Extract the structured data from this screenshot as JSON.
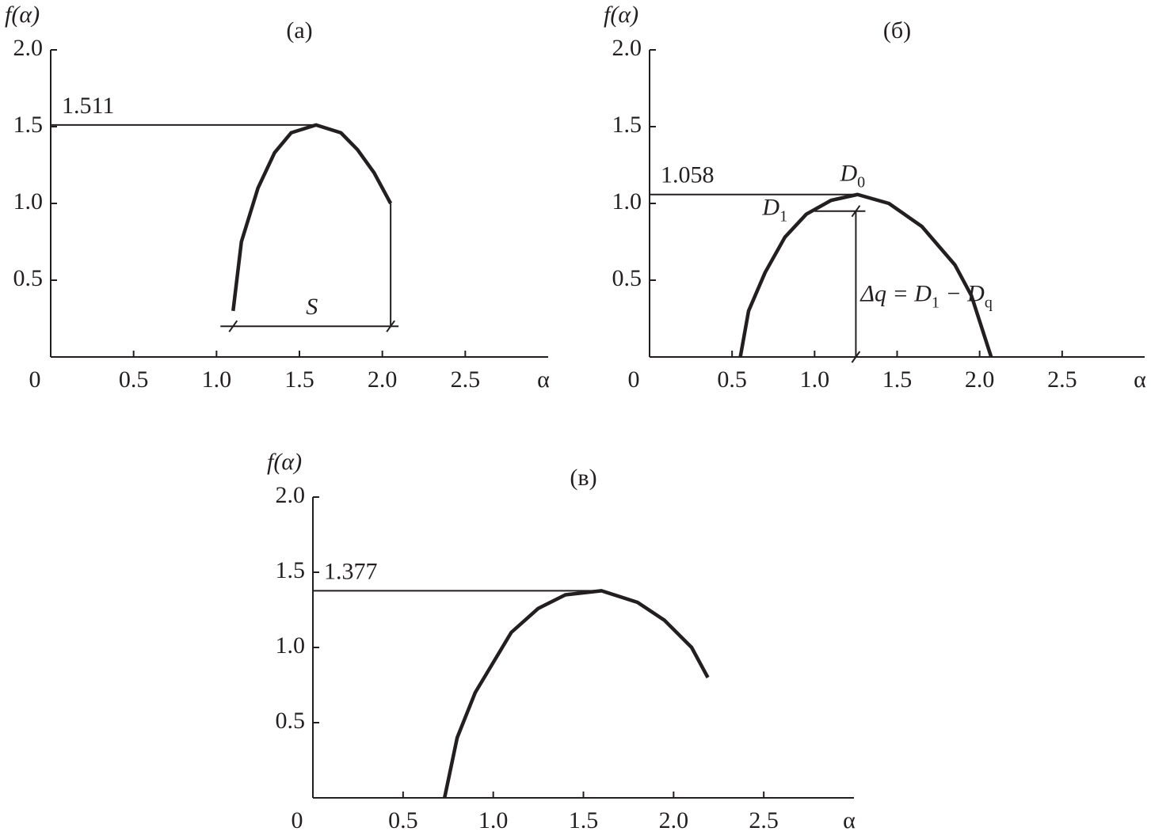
{
  "chart_data": [
    {
      "type": "line",
      "title": "(а)",
      "ylabel": "f(α)",
      "xlabel": "α",
      "xlim": [
        0,
        3
      ],
      "ylim": [
        0,
        2
      ],
      "xticks": [
        0,
        0.5,
        {
          "value": 1,
          "label": "1.0"
        },
        1.5,
        {
          "value": 2,
          "label": "2.0"
        },
        2.5
      ],
      "yticks": [
        0.5,
        {
          "value": 1,
          "label": "1.0"
        },
        1.5,
        {
          "value": 2,
          "label": "2.0"
        }
      ],
      "series": [
        {
          "color": "#231f20",
          "x": [
            1.1,
            1.15,
            1.25,
            1.35,
            1.45,
            1.6,
            1.75,
            1.85,
            1.95,
            2.05
          ],
          "values": [
            0.3,
            0.75,
            1.1,
            1.33,
            1.46,
            1.511,
            1.46,
            1.35,
            1.2,
            1.0
          ]
        }
      ],
      "peak": 1.511,
      "span_label": "S",
      "span_level": 0.2
    },
    {
      "type": "line",
      "title": "(б)",
      "ylabel": "f(α)",
      "xlabel": "α",
      "xlim": [
        0,
        3
      ],
      "ylim": [
        0,
        2
      ],
      "xticks": [
        0,
        0.5,
        {
          "value": 1,
          "label": "1.0"
        },
        1.5,
        {
          "value": 2,
          "label": "2.0"
        },
        2.5
      ],
      "yticks": [
        0.5,
        {
          "value": 1,
          "label": "1.0"
        },
        1.5,
        {
          "value": 2,
          "label": "2.0"
        }
      ],
      "series": [
        {
          "color": "#231f20",
          "x": [
            0.55,
            0.6,
            0.7,
            0.82,
            0.95,
            1.1,
            1.26,
            1.45,
            1.65,
            1.85,
            1.95,
            2.07
          ],
          "values": [
            0,
            0.3,
            0.55,
            0.78,
            0.93,
            1.02,
            1.058,
            1.0,
            0.85,
            0.6,
            0.4,
            0
          ]
        }
      ],
      "peak": 1.058,
      "peak_label": [
        "D",
        "0"
      ],
      "d1_level": 0.95,
      "d1_alpha": 1.25,
      "d1_label": [
        "D",
        "1"
      ],
      "delta_label": [
        "Δq = D",
        "1",
        " − D",
        "q"
      ]
    },
    {
      "type": "line",
      "title": "(в)",
      "ylabel": "f(α)",
      "xlabel": "α",
      "xlim": [
        0,
        3
      ],
      "ylim": [
        0,
        2
      ],
      "xticks": [
        0,
        0.5,
        {
          "value": 1,
          "label": "1.0"
        },
        1.5,
        {
          "value": 2,
          "label": "2.0"
        },
        2.5
      ],
      "yticks": [
        0.5,
        {
          "value": 1,
          "label": "1.0"
        },
        1.5,
        {
          "value": 2,
          "label": "2.0"
        }
      ],
      "series": [
        {
          "color": "#231f20",
          "x": [
            0.73,
            0.8,
            0.9,
            1.0,
            1.1,
            1.25,
            1.4,
            1.6,
            1.8,
            1.95,
            2.1,
            2.19
          ],
          "values": [
            0,
            0.4,
            0.7,
            0.9,
            1.1,
            1.26,
            1.35,
            1.377,
            1.3,
            1.18,
            1.0,
            0.8
          ]
        }
      ],
      "peak": 1.377
    }
  ]
}
